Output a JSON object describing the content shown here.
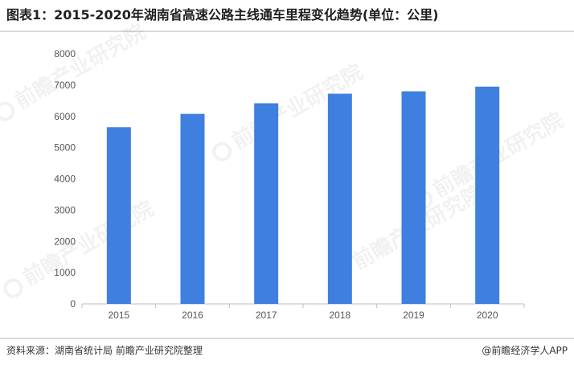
{
  "title": "图表1：2015-2020年湖南省高速公路主线通车里程变化趋势(单位：公里)",
  "source": "资料来源：湖南省统计局 前瞻产业研究院整理",
  "brand": "@前瞻经济学人APP",
  "watermark": "前瞻产业研究院",
  "colors": {
    "bar": "#3f7fe0",
    "axis": "#bfbfbf",
    "text": "#555555"
  },
  "chart_data": {
    "type": "bar",
    "categories": [
      "2015",
      "2016",
      "2017",
      "2018",
      "2019",
      "2020"
    ],
    "values": [
      5653,
      6080,
      6419,
      6725,
      6802,
      6951
    ],
    "title": "图表1：2015-2020年湖南省高速公路主线通车里程变化趋势(单位：公里)",
    "xlabel": "",
    "ylabel": "",
    "ylim": [
      0,
      8000
    ],
    "yticks": [
      0,
      1000,
      2000,
      3000,
      4000,
      5000,
      6000,
      7000,
      8000
    ],
    "grid": false,
    "legend": "none"
  }
}
